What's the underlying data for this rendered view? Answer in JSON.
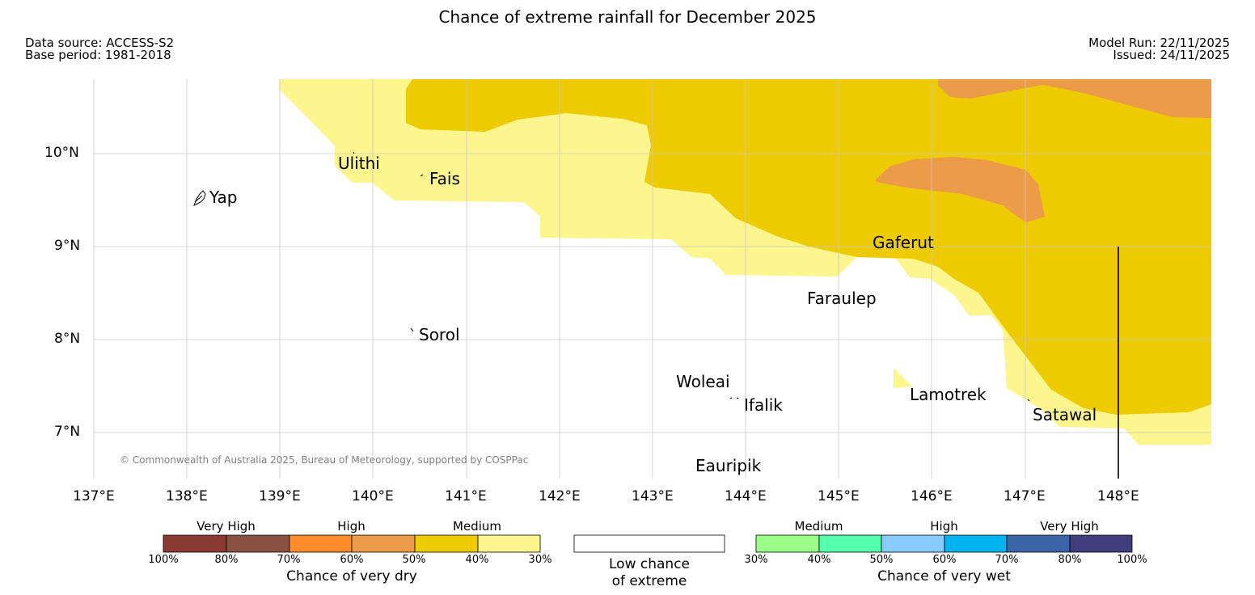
{
  "title": "Chance of extreme rainfall for December 2025",
  "meta": {
    "data_source": "Data source: ACCESS-S2",
    "base_period": "Base period: 1981-2018",
    "model_run": "Model Run: 22/11/2025",
    "issued": "Issued: 24/11/2025"
  },
  "axes": {
    "lat_labels": [
      "10°N",
      "9°N",
      "8°N",
      "7°N"
    ],
    "lon_labels": [
      "137°E",
      "138°E",
      "139°E",
      "140°E",
      "141°E",
      "142°E",
      "143°E",
      "144°E",
      "145°E",
      "146°E",
      "147°E",
      "148°E"
    ]
  },
  "places": {
    "yap": "Yap",
    "ulithi": "Ulithi",
    "fais": "Fais",
    "gaferut": "Gaferut",
    "faraulep": "Faraulep",
    "sorol": "Sorol",
    "woleai": "Woleai",
    "ifalik": "Ifalik",
    "lamotrek": "Lamotrek",
    "satawal": "Satawal",
    "eauripik": "Eauripik"
  },
  "copyright": "© Commonwealth of Australia 2025, Bureau of Meteorology, supported by COSPPac",
  "legend": {
    "dry": {
      "groups": [
        "Very High",
        "High",
        "Medium"
      ],
      "colors": [
        "#8b3a33",
        "#8b5140",
        "#ff8c28",
        "#ec9b48",
        "#eecb00",
        "#fdf58e"
      ],
      "ticks": [
        "100%",
        "80%",
        "70%",
        "60%",
        "50%",
        "40%",
        "30%"
      ],
      "caption": "Chance of very dry"
    },
    "neutral": {
      "caption_line1": "Low chance",
      "caption_line2": "of extreme"
    },
    "wet": {
      "groups": [
        "Medium",
        "High",
        "Very High"
      ],
      "colors": [
        "#99ff88",
        "#55ffaa",
        "#88ccff",
        "#00b4f0",
        "#3a64a6",
        "#3e3e7e"
      ],
      "ticks": [
        "30%",
        "40%",
        "50%",
        "60%",
        "70%",
        "80%",
        "100%"
      ],
      "caption": "Chance of very wet"
    }
  },
  "colors": {
    "medium_30_40": "#fdf58e",
    "medium_40_50": "#eecb00",
    "high_50_60": "#ec9b48",
    "grid": "#c8c8c8",
    "text_gray": "#808080"
  }
}
